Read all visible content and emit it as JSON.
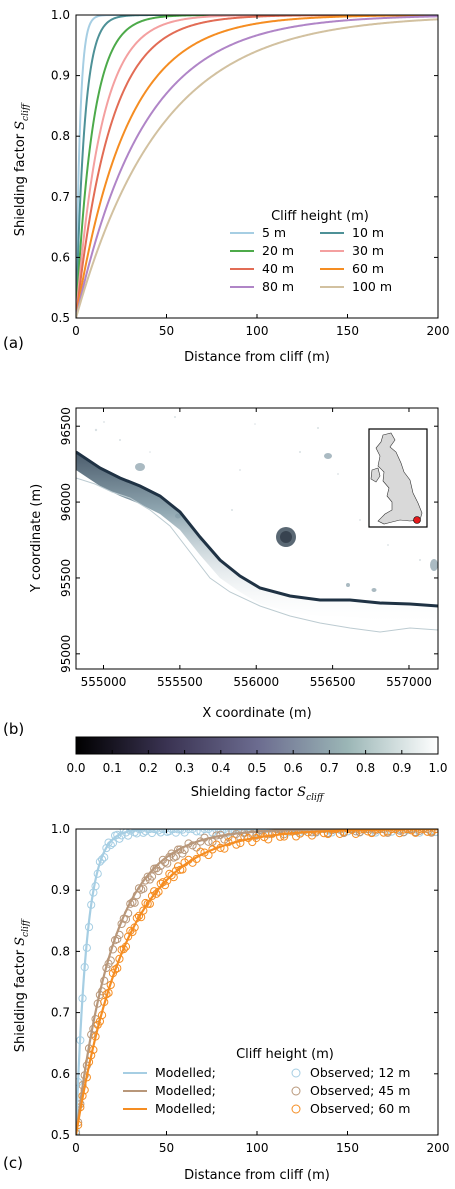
{
  "chart_data": [
    {
      "panel": "(a)",
      "type": "line",
      "xlabel": "Distance from  cliff (m)",
      "ylabel": "Shielding factor S_cliff",
      "xlim": [
        0,
        200
      ],
      "ylim": [
        0.5,
        1.0
      ],
      "xticks": [
        0,
        50,
        100,
        150,
        200
      ],
      "yticks": [
        0.5,
        0.6,
        0.7,
        0.8,
        0.9,
        1.0
      ],
      "legend_title": "Cliff  height (m)",
      "legend_position": "lower-right",
      "series": [
        {
          "name": "5 m",
          "color": "#a6cee3",
          "decay_length_m": 2.2
        },
        {
          "name": "10 m",
          "color": "#4e9197",
          "decay_length_m": 4.7
        },
        {
          "name": "20 m",
          "color": "#4daa4a",
          "decay_length_m": 9.3
        },
        {
          "name": "30 m",
          "color": "#f4a0a0",
          "decay_length_m": 14
        },
        {
          "name": "40 m",
          "color": "#e26c55",
          "decay_length_m": 19
        },
        {
          "name": "60 m",
          "color": "#f58d22",
          "decay_length_m": 28
        },
        {
          "name": "80 m",
          "color": "#b085c7",
          "decay_length_m": 37
        },
        {
          "name": "100 m",
          "color": "#d2c1a0",
          "decay_length_m": 47
        }
      ]
    },
    {
      "panel": "(b)",
      "type": "heatmap",
      "xlabel": "X coordinate (m)",
      "ylabel": "Y coordinate (m)",
      "xticks": [
        555000,
        555500,
        556000,
        556500,
        557000
      ],
      "yticks": [
        95000,
        95500,
        96000,
        96500
      ],
      "xlim": [
        554820,
        557190
      ],
      "ylim": [
        94900,
        96620
      ],
      "colorbar_label": "Shielding factor S_cliff",
      "colorbar_ticks": [
        0.0,
        0.1,
        0.2,
        0.3,
        0.4,
        0.5,
        0.6,
        0.7,
        0.8,
        0.9,
        1.0
      ],
      "inset": "Great Britain location map with site marker",
      "inset_marker_color": "#e31a1c"
    },
    {
      "panel": "(c)",
      "type": "line",
      "xlabel": "Distance from  cliff (m)",
      "ylabel": "Shielding factor S_cliff",
      "xlim": [
        0,
        200
      ],
      "ylim": [
        0.5,
        1.0
      ],
      "xticks": [
        0,
        50,
        100,
        150,
        200
      ],
      "yticks": [
        0.5,
        0.6,
        0.7,
        0.8,
        0.9,
        1.0
      ],
      "legend_title": "Cliff  height (m)",
      "legend_position": "lower-right",
      "series": [
        {
          "name": "Modelled;",
          "kind": "line",
          "color": "#a6cee3",
          "decay_length_m": 6
        },
        {
          "name": "Modelled;",
          "kind": "line",
          "color": "#b8977a",
          "decay_length_m": 21
        },
        {
          "name": "Modelled;",
          "kind": "line",
          "color": "#f58d22",
          "decay_length_m": 28
        },
        {
          "name": "Observed; 12 m",
          "kind": "scatter",
          "color": "#a6cee3",
          "decay_length_m": 6.2
        },
        {
          "name": "Observed; 45 m",
          "kind": "scatter",
          "color": "#b8977a",
          "decay_length_m": 22
        },
        {
          "name": "Observed; 60 m",
          "kind": "scatter",
          "color": "#f58d22",
          "decay_length_m": 28
        }
      ]
    }
  ],
  "labels": {
    "panel_a": "(a)",
    "panel_b": "(b)",
    "panel_c": "(c)",
    "xlabel_a": "Distance from  cliff (m)",
    "xlabel_b": "X coordinate (m)",
    "xlabel_c": "Distance from  cliff (m)",
    "ylabel_a": "Shielding factor ",
    "ylabel_b": "Y coordinate (m)",
    "ylabel_c": "Shielding factor ",
    "s_symbol": "S",
    "s_sub": "cliff",
    "cbar_label": "Shielding factor ",
    "legend_title_a": "Cliff  height (m)",
    "legend_title_c": "Cliff  height (m)"
  }
}
